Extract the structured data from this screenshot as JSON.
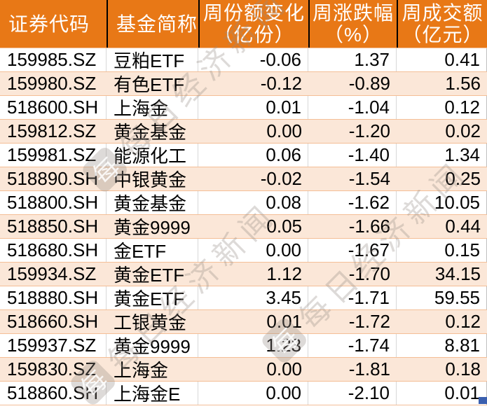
{
  "chart_data": {
    "type": "table",
    "title": "",
    "columns": [
      {
        "title": "证券代码",
        "unit": ""
      },
      {
        "title": "基金简称",
        "unit": ""
      },
      {
        "title": "周份额变化",
        "unit": "（亿份）"
      },
      {
        "title": "周涨跌幅",
        "unit": "（%）"
      },
      {
        "title": "周成交额",
        "unit": "（亿元）"
      }
    ],
    "rows": [
      [
        "159985.SZ",
        "豆粕ETF",
        "-0.06",
        "1.37",
        "0.41"
      ],
      [
        "159980.SZ",
        "有色ETF",
        "-0.12",
        "-0.89",
        "1.56"
      ],
      [
        "518600.SH",
        "上海金",
        "0.01",
        "-1.04",
        "0.12"
      ],
      [
        "159812.SZ",
        "黄金基金",
        "0.00",
        "-1.20",
        "0.02"
      ],
      [
        "159981.SZ",
        "能源化工",
        "0.06",
        "-1.40",
        "1.34"
      ],
      [
        "518890.SH",
        "中银黄金",
        "-0.02",
        "-1.54",
        "0.25"
      ],
      [
        "518800.SH",
        "黄金基金",
        "0.08",
        "-1.62",
        "10.05"
      ],
      [
        "518850.SH",
        "黄金9999",
        "0.05",
        "-1.66",
        "0.44"
      ],
      [
        "518680.SH",
        "金ETF",
        "0.00",
        "-1.67",
        "0.15"
      ],
      [
        "159934.SZ",
        "黄金ETF",
        "1.12",
        "-1.70",
        "34.15"
      ],
      [
        "518880.SH",
        "黄金ETF",
        "3.45",
        "-1.71",
        "59.55"
      ],
      [
        "518660.SH",
        "工银黄金",
        "0.01",
        "-1.72",
        "0.12"
      ],
      [
        "159937.SZ",
        "黄金9999",
        "1.23",
        "-1.74",
        "8.81"
      ],
      [
        "159830.SZ",
        "上海金",
        "0.00",
        "-1.81",
        "0.18"
      ],
      [
        "518860.SH",
        "上海金E",
        "0.00",
        "-2.10",
        "0.01"
      ]
    ]
  },
  "watermark": {
    "text": "每日经济新闻",
    "logo_char": "每"
  },
  "colors": {
    "header_bg": "#E87816",
    "header_text": "#FFFFFF",
    "band_bg": "#FBE7D8",
    "row_border": "#F4BE96",
    "gridline": "#D8D8D8",
    "header_divider": "#000000",
    "selection_handle": "#3A5FAE",
    "body_text": "#000000"
  }
}
